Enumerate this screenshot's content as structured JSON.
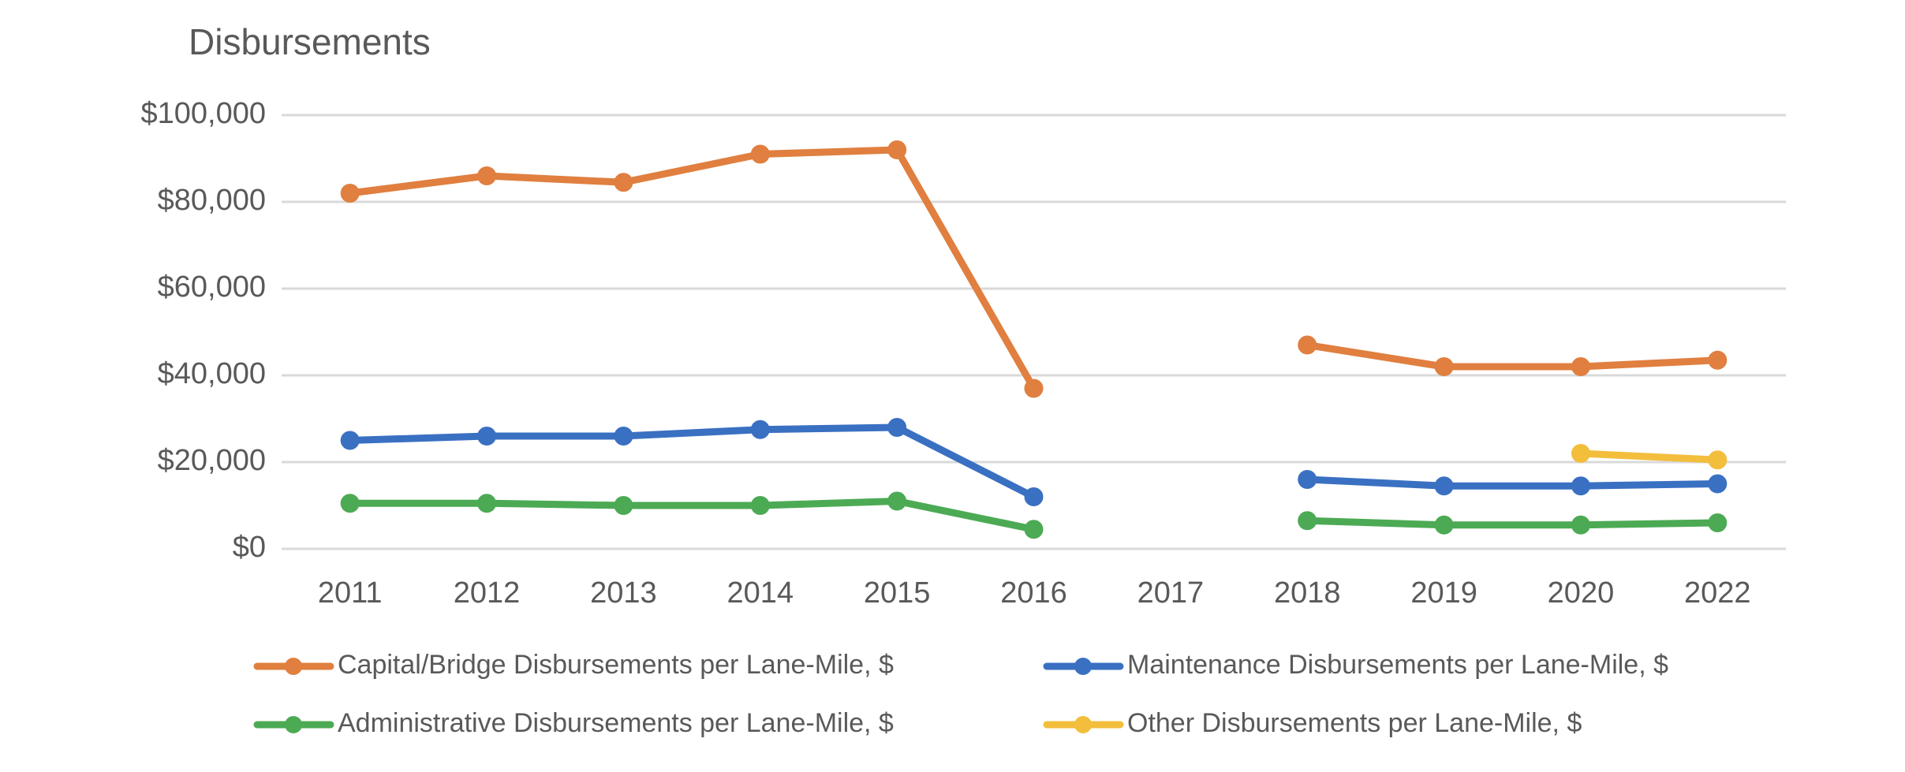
{
  "chart_data": {
    "type": "line",
    "title": "Disbursements",
    "categories": [
      "2011",
      "2012",
      "2013",
      "2014",
      "2015",
      "2016",
      "2017",
      "2018",
      "2019",
      "2020",
      "2022"
    ],
    "series": [
      {
        "name": "Capital/Bridge Disbursements per Lane-Mile, $",
        "color": "#e07f3f",
        "values": [
          82000,
          86000,
          84500,
          91000,
          92000,
          37000,
          null,
          47000,
          42000,
          42000,
          43500
        ]
      },
      {
        "name": "Maintenance Disbursements per Lane-Mile, $",
        "color": "#3a70c2",
        "values": [
          25000,
          26000,
          26000,
          27500,
          28000,
          12000,
          null,
          16000,
          14500,
          14500,
          15000
        ]
      },
      {
        "name": "Administrative Disbursements per Lane-Mile, $",
        "color": "#4caa54",
        "values": [
          10500,
          10500,
          10000,
          10000,
          11000,
          4500,
          null,
          6500,
          5500,
          5500,
          6000
        ]
      },
      {
        "name": "Other Disbursements per Lane-Mile, $",
        "color": "#f2be3c",
        "values": [
          null,
          null,
          null,
          null,
          null,
          null,
          null,
          null,
          null,
          22000,
          20500
        ]
      }
    ],
    "ylim": [
      0,
      100000
    ],
    "yticks": [
      {
        "value": 0,
        "label": "$0"
      },
      {
        "value": 20000,
        "label": "$20,000"
      },
      {
        "value": 40000,
        "label": "$40,000"
      },
      {
        "value": 60000,
        "label": "$60,000"
      },
      {
        "value": 80000,
        "label": "$80,000"
      },
      {
        "value": 100000,
        "label": "$100,000"
      }
    ],
    "grid": true,
    "legend": "bottom"
  }
}
